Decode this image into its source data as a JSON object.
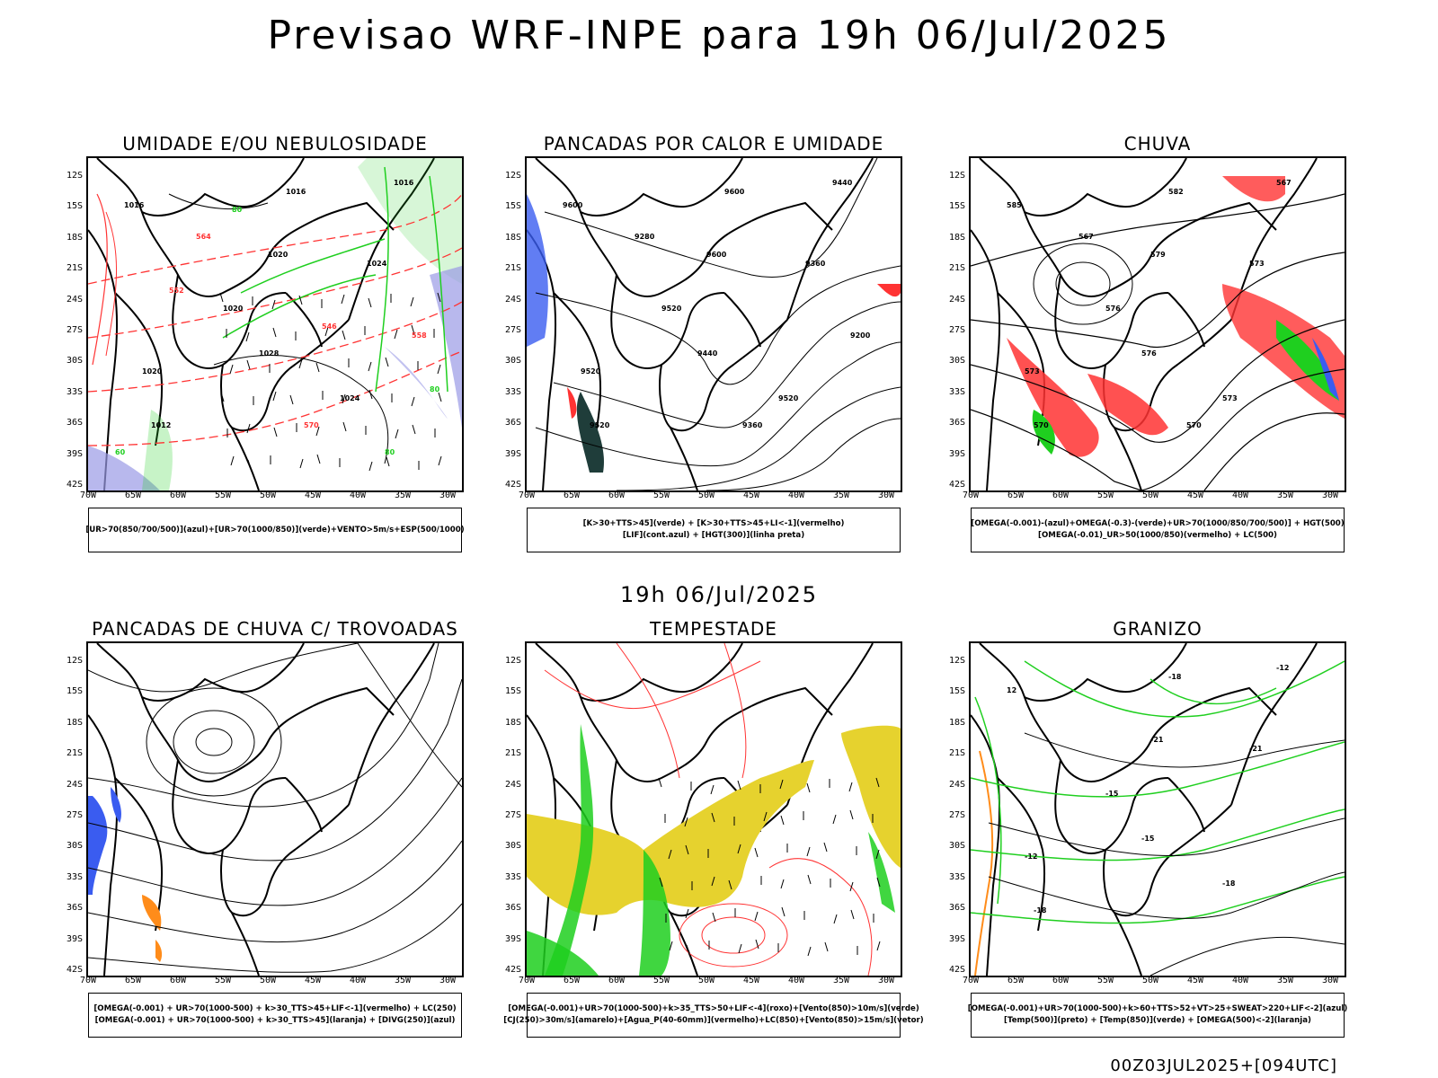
{
  "title": "Previsao WRF-INPE  para 19h 06/Jul/2025",
  "subtitle": "19h 06/Jul/2025",
  "footer": "00Z03JUL2025+[094UTC]",
  "lat_labels": [
    "12S",
    "15S",
    "18S",
    "21S",
    "24S",
    "27S",
    "30S",
    "33S",
    "36S",
    "39S",
    "42S"
  ],
  "lon_labels": [
    "70W",
    "65W",
    "60W",
    "55W",
    "50W",
    "45W",
    "40W",
    "35W",
    "30W"
  ],
  "colors": {
    "azul": "#3a5cf0",
    "verde": "#1fcf1f",
    "vermelho": "#ff3333",
    "laranja": "#ff8c1a",
    "amarelo": "#e6d22e",
    "roxo": "#9a9ae6",
    "cinza_escuro": "#1f3d3a"
  },
  "panels": [
    {
      "title": "UMIDADE E/OU NEBULOSIDADE",
      "legend": [
        "[UR>70(850/700/500)](azul)+[UR>70(1000/850)](verde)+VENTO>5m/s+ESP(500/1000)"
      ],
      "contour_labels": [
        "1016",
        "1016",
        "1020",
        "1020",
        "1020",
        "1024",
        "1012",
        "1016",
        "1028",
        "1024",
        "570",
        "564",
        "558",
        "552",
        "546",
        "60",
        "80",
        "80",
        "80"
      ]
    },
    {
      "title": "PANCADAS POR CALOR E UMIDADE",
      "legend": [
        "[K>30+TTS>45](verde) + [K>30+TTS>45+LI<-1](vermelho)",
        "[LIF](cont.azul) + [HGT(300)](linha preta)"
      ],
      "contour_labels": [
        "9600",
        "9600",
        "9600",
        "9520",
        "9520",
        "9520",
        "9520",
        "9440",
        "9440",
        "9360",
        "9360",
        "9280",
        "9200"
      ]
    },
    {
      "title": "CHUVA",
      "legend": [
        "[OMEGA(-0.001)-(azul)+OMEGA(-0.3)-(verde)+UR>70(1000/850/700/500)] + HGT(500)",
        "[OMEGA(-0.01)_UR>50(1000/850)(vermelho) + LC(500)"
      ],
      "contour_labels": [
        "585",
        "582",
        "579",
        "576",
        "573",
        "573",
        "570",
        "567",
        "576",
        "573",
        "570",
        "567"
      ]
    },
    {
      "title": "PANCADAS DE CHUVA C/ TROVOADAS",
      "legend": [
        "[OMEGA(-0.001) + UR>70(1000-500) + k>30_TTS>45+LIF<-1](vermelho) + LC(250)",
        "[OMEGA(-0.001) + UR>70(1000-500) + k>30_TTS>45](laranja) + [DIVG(250)](azul)"
      ],
      "contour_labels": []
    },
    {
      "title": "TEMPESTADE",
      "legend": [
        "[OMEGA(-0.001)+UR>70(1000-500)+k>35_TTS>50+LIF<-4](roxo)+[Vento(850)>10m/s](verde)",
        "[CJ(250)>30m/s](amarelo)+[Agua_P(40-60mm)](vermelho)+LC(850)+[Vento(850)>15m/s](vetor)"
      ],
      "contour_labels": []
    },
    {
      "title": "GRANIZO",
      "legend": [
        "[OMEGA(-0.001)+UR>70(1000-500)+k>60+TTS>52+VT>25+SWEAT>220+LIF<-2](azul)",
        "[Temp(500)](preto) + [Temp(850)](verde) + [OMEGA(500)<-2](laranja)"
      ],
      "contour_labels": [
        "12",
        "-18",
        "-21",
        "-15",
        "-12",
        "-18",
        "-18",
        "-12",
        "-15",
        "-21"
      ]
    }
  ]
}
